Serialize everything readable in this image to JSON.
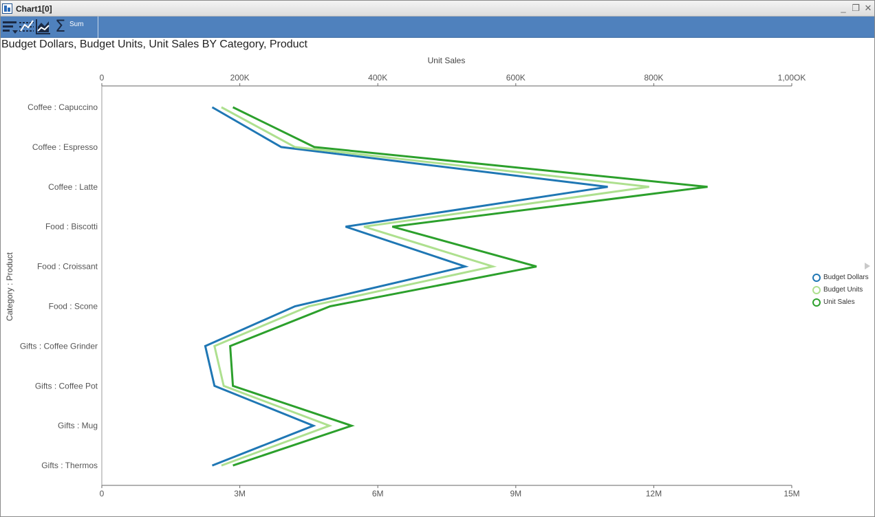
{
  "window": {
    "title": "Chart1[0]",
    "controls": {
      "minimize": "_",
      "restore": "❐",
      "close": "✕"
    }
  },
  "toolbar": {
    "sort_icon": "sort-icon",
    "filter_icon": "filter-icon",
    "chart_type_icon": "chart-type-icon",
    "aggregate_symbol": "Σ",
    "aggregate_label": "Sum"
  },
  "colors": {
    "toolbar": "#4f81bd",
    "budget_dollars": "#1f77b4",
    "budget_units": "#aee08f",
    "unit_sales": "#2ca02c"
  },
  "chart_data": {
    "type": "line",
    "orientation": "horizontal",
    "title": "Budget Dollars, Budget Units, Unit Sales BY Category, Product",
    "ylabel": "Category : Product",
    "top_axis": {
      "label": "Unit Sales",
      "range": [
        0,
        1000000
      ],
      "ticks": [
        0,
        200000,
        400000,
        600000,
        800000,
        1000000
      ],
      "tick_labels": [
        "0",
        "200K",
        "400K",
        "600K",
        "800K",
        "1,00OK"
      ]
    },
    "bottom_axis": {
      "label": "",
      "range": [
        0,
        15000000
      ],
      "ticks": [
        0,
        3000000,
        6000000,
        9000000,
        12000000,
        15000000
      ],
      "tick_labels": [
        "0",
        "3M",
        "6M",
        "9M",
        "12M",
        "15M"
      ]
    },
    "categories": [
      "Coffee : Capuccino",
      "Coffee : Espresso",
      "Coffee : Latte",
      "Food : Biscotti",
      "Food : Croissant",
      "Food : Scone",
      "Gifts : Coffee Grinder",
      "Gifts : Coffee Pot",
      "Gifts : Mug",
      "Gifts : Thermos"
    ],
    "series": [
      {
        "name": "Budget Dollars",
        "axis": "bottom",
        "color": "#1f77b4",
        "values": [
          2400000,
          3900000,
          11000000,
          5300000,
          7900000,
          4200000,
          2250000,
          2450000,
          4600000,
          2400000
        ]
      },
      {
        "name": "Budget Units",
        "axis": "bottom",
        "color": "#aee08f",
        "values": [
          2600000,
          4200000,
          11900000,
          5700000,
          8500000,
          4500000,
          2450000,
          2650000,
          4950000,
          2600000
        ]
      },
      {
        "name": "Unit Sales",
        "axis": "top",
        "color": "#2ca02c",
        "values": [
          190000,
          308000,
          878000,
          421000,
          630000,
          331000,
          186000,
          190000,
          362000,
          190000
        ]
      }
    ],
    "grid": false,
    "legend_position": "right"
  }
}
